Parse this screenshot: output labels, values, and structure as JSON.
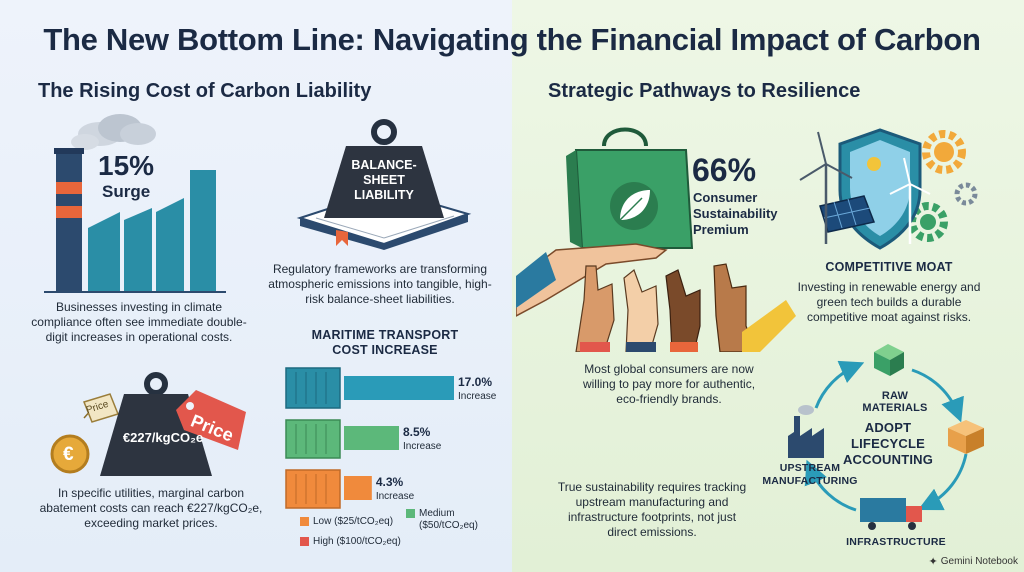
{
  "title": "The New Bottom Line: Navigating the Financial Impact of Carbon",
  "left": {
    "heading": "The Rising Cost of Carbon Liability",
    "surge": {
      "value": "15%",
      "label": "Surge",
      "caption": "Businesses investing in climate compliance often see immediate double-digit increases in operational costs."
    },
    "liability": {
      "weight_text": "BALANCE-SHEET LIABILITY",
      "caption": "Regulatory frameworks are transforming atmospheric emissions into tangible, high-risk balance-sheet liabilities."
    },
    "abatement": {
      "weight_value": "€227/kgCO₂e",
      "tag_big": "Price",
      "tag_small": "Price",
      "coin": "€",
      "caption": "In specific utilities, marginal carbon abatement costs can reach €227/kgCO₂e, exceeding market prices."
    },
    "maritime": {
      "heading": "MARITIME TRANSPORT COST INCREASE",
      "legend": [
        {
          "label": "Low ($25/tCO₂eq)",
          "color": "#f08a3c"
        },
        {
          "label": "Medium ($50/tCO₂eq)",
          "color": "#5cb87a"
        },
        {
          "label": "High ($100/tCO₂eq)",
          "color": "#e2574c"
        }
      ]
    }
  },
  "chart_data": {
    "type": "bar",
    "title": "MARITIME TRANSPORT COST INCREASE",
    "categories": [
      "High ($100/tCO₂eq)",
      "Medium ($50/tCO₂eq)",
      "Low ($25/tCO₂eq)"
    ],
    "values": [
      17.0,
      8.5,
      4.3
    ],
    "value_labels": [
      "17.0%",
      "8.5%",
      "4.3%"
    ],
    "bar_sublabel": "Increase",
    "colors": [
      "#2a9bb8",
      "#5cb87a",
      "#f08a3c"
    ],
    "xlim": [
      0,
      17
    ]
  },
  "right": {
    "heading": "Strategic Pathways to Resilience",
    "premium": {
      "value": "66%",
      "label": "Consumer Sustainability Premium",
      "caption": "Most global consumers are now willing to pay more for authentic, eco-friendly brands."
    },
    "moat": {
      "heading": "COMPETITIVE MOAT",
      "caption": "Investing in renewable energy and green tech builds a durable competitive moat against risks."
    },
    "lifecycle": {
      "center": "ADOPT LIFECYCLE ACCOUNTING",
      "raw": "RAW MATERIALS",
      "upstream": "UPSTREAM MANUFACTURING",
      "infra": "INFRASTRUCTURE",
      "caption": "True sustainability requires tracking upstream manufacturing and infrastructure footprints, not just direct emissions."
    }
  },
  "footer": "Gemini Notebook"
}
